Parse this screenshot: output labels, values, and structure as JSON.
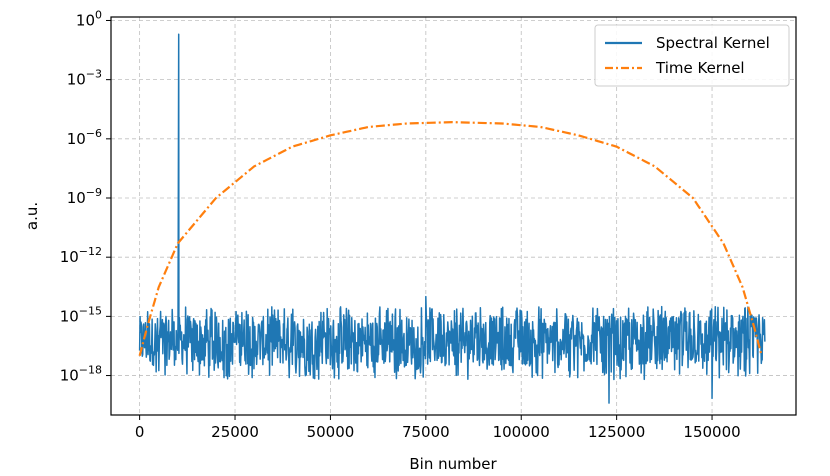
{
  "chart_data": {
    "type": "line",
    "xlabel": "Bin number",
    "ylabel": "a.u.",
    "x_scale": "linear",
    "y_scale": "log",
    "xlim": [
      -7500,
      172000
    ],
    "ylim": [
      1e-20,
      1.5
    ],
    "x_ticks": [
      0,
      25000,
      50000,
      75000,
      100000,
      125000,
      150000
    ],
    "x_tick_labels": [
      "0",
      "25000",
      "50000",
      "75000",
      "100000",
      "125000",
      "150000"
    ],
    "y_ticks": [
      1,
      0.001,
      1e-06,
      1e-09,
      1e-12,
      1e-15,
      1e-18
    ],
    "y_tick_labels": [
      {
        "base": "10",
        "exp": "0"
      },
      {
        "base": "10",
        "exp": "−3"
      },
      {
        "base": "10",
        "exp": "−6"
      },
      {
        "base": "10",
        "exp": "−9"
      },
      {
        "base": "10",
        "exp": "−12"
      },
      {
        "base": "10",
        "exp": "−15"
      },
      {
        "base": "10",
        "exp": "−18"
      }
    ],
    "grid": true,
    "legend_position": "top-right",
    "series": [
      {
        "name": "Spectral Kernel",
        "color": "#1f77b4",
        "style": "solid",
        "x_range": [
          0,
          163840
        ],
        "noise_floor_log10_range": [
          -18.2,
          -14.5
        ],
        "typical_log10_band": [
          -17.5,
          -15.0
        ],
        "spikes": [
          {
            "x": 10240,
            "y": 0.2
          },
          {
            "x": 123000,
            "y": 4e-20
          },
          {
            "x": 150000,
            "y": 7e-20
          },
          {
            "x": 75000,
            "y": 1e-14
          }
        ]
      },
      {
        "name": "Time Kernel",
        "color": "#ff7f0e",
        "style": "dashdot",
        "points": [
          [
            0,
            1e-17
          ],
          [
            2000,
            3e-16
          ],
          [
            5000,
            3e-14
          ],
          [
            10000,
            5e-12
          ],
          [
            20000,
            1e-09
          ],
          [
            30000,
            4e-08
          ],
          [
            40000,
            4e-07
          ],
          [
            50000,
            1.5e-06
          ],
          [
            60000,
            4e-06
          ],
          [
            70000,
            6e-06
          ],
          [
            82000,
            7e-06
          ],
          [
            95000,
            6e-06
          ],
          [
            105000,
            4e-06
          ],
          [
            115000,
            1.5e-06
          ],
          [
            125000,
            4e-07
          ],
          [
            135000,
            4e-08
          ],
          [
            145000,
            1e-09
          ],
          [
            153000,
            5e-12
          ],
          [
            158000,
            3e-14
          ],
          [
            161000,
            3e-16
          ],
          [
            163000,
            1e-17
          ]
        ]
      }
    ]
  }
}
